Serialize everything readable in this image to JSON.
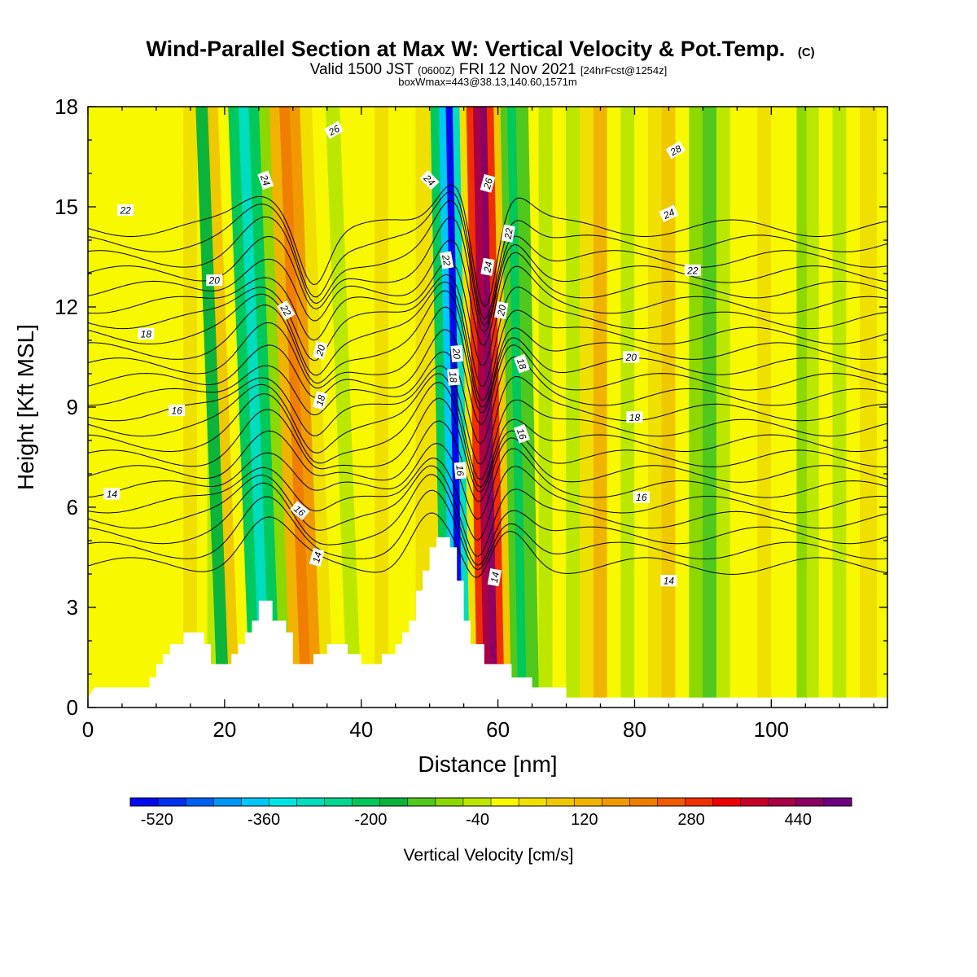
{
  "chart_data": {
    "type": "heatmap",
    "title": "Wind-Parallel Section at Max W: Vertical Velocity & Pot.Temp.",
    "title_mark": "(C)",
    "subtitle": {
      "pre": "Valid 1500 JST ",
      "zulu": "(0600Z)",
      "mid": " FRI 12 Nov 2021 ",
      "fcst": "[24hrFcst@1254z]"
    },
    "subtitle2": "boxWmax=443@38.13,140.60,1571m",
    "xlabel": "Distance [nm]",
    "ylabel": "Height [Kft MSL]",
    "xlim": [
      0,
      117
    ],
    "ylim": [
      0,
      18
    ],
    "xticks": [
      0,
      20,
      40,
      60,
      80,
      100
    ],
    "yticks": [
      0,
      3,
      6,
      9,
      12,
      15,
      18
    ],
    "colorbar": {
      "label": "Vertical Velocity [cm/s]",
      "ticks": [
        -520,
        -360,
        -200,
        -40,
        120,
        280,
        440
      ],
      "min": -560,
      "max": 520,
      "colors": [
        "#0008ee",
        "#0030f0",
        "#0060f4",
        "#0096f6",
        "#00c8f8",
        "#00e6e6",
        "#00dcbe",
        "#00d890",
        "#00c85a",
        "#0cb43c",
        "#50c81e",
        "#8cd800",
        "#bce800",
        "#f8f800",
        "#f0e000",
        "#f0c800",
        "#f0b400",
        "#f09a00",
        "#f07e00",
        "#f05a00",
        "#f02e00",
        "#ee0000",
        "#c80028",
        "#aa0046",
        "#8c0064",
        "#6e0082"
      ]
    },
    "columns": [
      {
        "x": 0,
        "w": -10
      },
      {
        "x": 4,
        "w": -20
      },
      {
        "x": 8,
        "w": -10
      },
      {
        "x": 11,
        "w": 10
      },
      {
        "x": 13,
        "w": 10
      },
      {
        "x": 15,
        "w": 60
      },
      {
        "x": 17,
        "w": 20
      },
      {
        "x": 18,
        "w": -60
      },
      {
        "x": 20,
        "w": -160
      },
      {
        "x": 21.5,
        "w": 80
      },
      {
        "x": 23,
        "w": 20
      },
      {
        "x": 24.5,
        "w": -200
      },
      {
        "x": 26,
        "w": -310
      },
      {
        "x": 27.5,
        "w": -200
      },
      {
        "x": 29,
        "w": -80
      },
      {
        "x": 30.5,
        "w": 120
      },
      {
        "x": 32,
        "w": 200
      },
      {
        "x": 33.5,
        "w": 150
      },
      {
        "x": 35,
        "w": 60
      },
      {
        "x": 37,
        "w": -20
      },
      {
        "x": 39,
        "w": -40
      },
      {
        "x": 41,
        "w": 10
      },
      {
        "x": 43,
        "w": 40
      },
      {
        "x": 45,
        "w": 10
      },
      {
        "x": 47,
        "w": -20
      },
      {
        "x": 49,
        "w": 60
      },
      {
        "x": 51,
        "w": 40
      },
      {
        "x": 52.5,
        "w": -200
      },
      {
        "x": 53.5,
        "w": -360
      },
      {
        "x": 54.5,
        "w": -520
      },
      {
        "x": 55.5,
        "w": -300
      },
      {
        "x": 56.5,
        "w": 40
      },
      {
        "x": 57.5,
        "w": 280
      },
      {
        "x": 58.5,
        "w": 400
      },
      {
        "x": 59.5,
        "w": 443
      },
      {
        "x": 60.5,
        "w": 280
      },
      {
        "x": 61.5,
        "w": 80
      },
      {
        "x": 62.5,
        "w": -120
      },
      {
        "x": 63.5,
        "w": -200
      },
      {
        "x": 65,
        "w": -140
      },
      {
        "x": 67,
        "w": -60
      },
      {
        "x": 69,
        "w": 20
      },
      {
        "x": 71,
        "w": -40
      },
      {
        "x": 73,
        "w": 40
      },
      {
        "x": 75,
        "w": 120
      },
      {
        "x": 77,
        "w": 20
      },
      {
        "x": 79,
        "w": -60
      },
      {
        "x": 81,
        "w": -20
      },
      {
        "x": 83,
        "w": 40
      },
      {
        "x": 85,
        "w": 100
      },
      {
        "x": 87,
        "w": 20
      },
      {
        "x": 89,
        "w": -80
      },
      {
        "x": 91,
        "w": -120
      },
      {
        "x": 93,
        "w": -40
      },
      {
        "x": 95,
        "w": 20
      },
      {
        "x": 97,
        "w": -20
      },
      {
        "x": 99,
        "w": 40
      },
      {
        "x": 101,
        "w": -20
      },
      {
        "x": 103,
        "w": 20
      },
      {
        "x": 104.5,
        "w": -100
      },
      {
        "x": 106,
        "w": -60
      },
      {
        "x": 108,
        "w": 20
      },
      {
        "x": 110,
        "w": -40
      },
      {
        "x": 112,
        "w": 10
      },
      {
        "x": 114,
        "w": 40
      },
      {
        "x": 117,
        "w": 10
      }
    ],
    "terrain": [
      [
        0,
        0.3
      ],
      [
        1,
        0.6
      ],
      [
        9,
        0.6
      ],
      [
        9,
        0.9
      ],
      [
        10,
        0.9
      ],
      [
        10,
        1.3
      ],
      [
        11,
        1.3
      ],
      [
        11,
        1.6
      ],
      [
        12,
        1.6
      ],
      [
        12,
        1.9
      ],
      [
        14,
        1.9
      ],
      [
        14,
        2.25
      ],
      [
        17,
        2.25
      ],
      [
        17,
        1.9
      ],
      [
        18,
        1.9
      ],
      [
        18,
        1.3
      ],
      [
        21,
        1.3
      ],
      [
        21,
        1.6
      ],
      [
        22,
        1.6
      ],
      [
        22,
        1.9
      ],
      [
        23,
        1.9
      ],
      [
        23,
        2.25
      ],
      [
        24,
        2.25
      ],
      [
        24,
        2.6
      ],
      [
        25,
        2.6
      ],
      [
        25,
        3.2
      ],
      [
        27,
        3.2
      ],
      [
        27,
        2.6
      ],
      [
        29,
        2.6
      ],
      [
        29,
        2.25
      ],
      [
        30,
        2.25
      ],
      [
        30,
        1.3
      ],
      [
        33,
        1.3
      ],
      [
        33,
        1.6
      ],
      [
        35,
        1.6
      ],
      [
        35,
        1.9
      ],
      [
        38,
        1.9
      ],
      [
        38,
        1.6
      ],
      [
        40,
        1.6
      ],
      [
        40,
        1.3
      ],
      [
        43,
        1.3
      ],
      [
        43,
        1.6
      ],
      [
        45,
        1.6
      ],
      [
        45,
        1.9
      ],
      [
        46,
        1.9
      ],
      [
        46,
        2.25
      ],
      [
        47,
        2.25
      ],
      [
        47,
        2.6
      ],
      [
        48,
        2.6
      ],
      [
        48,
        3.5
      ],
      [
        49,
        3.5
      ],
      [
        49,
        4.1
      ],
      [
        50,
        4.1
      ],
      [
        50,
        4.8
      ],
      [
        51,
        4.8
      ],
      [
        51,
        5.1
      ],
      [
        53,
        5.1
      ],
      [
        53,
        4.8
      ],
      [
        54,
        4.8
      ],
      [
        54,
        3.8
      ],
      [
        55,
        3.8
      ],
      [
        55,
        2.6
      ],
      [
        56,
        2.6
      ],
      [
        56,
        1.9
      ],
      [
        58,
        1.9
      ],
      [
        58,
        1.3
      ],
      [
        62,
        1.3
      ],
      [
        62,
        0.9
      ],
      [
        65,
        0.9
      ],
      [
        65,
        0.6
      ],
      [
        70,
        0.6
      ],
      [
        70,
        0.3
      ],
      [
        117,
        0.3
      ]
    ],
    "theta_isentropes_baseline": [
      9,
      10,
      11,
      12,
      13,
      14,
      15,
      16,
      17,
      18,
      19,
      20,
      21,
      22,
      23,
      24,
      25,
      26,
      27,
      28,
      29,
      30,
      31
    ]
  },
  "isentrope_labels": [
    {
      "text": "22",
      "x": 5.5,
      "y": 14.9,
      "rot": 0
    },
    {
      "text": "20",
      "x": 18.5,
      "y": 12.8,
      "rot": 0
    },
    {
      "text": "18",
      "x": 8.5,
      "y": 11.2,
      "rot": 0
    },
    {
      "text": "16",
      "x": 13,
      "y": 8.9,
      "rot": 0
    },
    {
      "text": "14",
      "x": 3.5,
      "y": 6.4,
      "rot": 0
    },
    {
      "text": "26",
      "x": 36,
      "y": 17.3,
      "rot": -30
    },
    {
      "text": "24",
      "x": 26,
      "y": 15.8,
      "rot": 70
    },
    {
      "text": "22",
      "x": 29,
      "y": 11.9,
      "rot": 60
    },
    {
      "text": "20",
      "x": 34,
      "y": 10.7,
      "rot": -75
    },
    {
      "text": "18",
      "x": 34,
      "y": 9.2,
      "rot": -75
    },
    {
      "text": "16",
      "x": 31,
      "y": 5.9,
      "rot": 40
    },
    {
      "text": "14",
      "x": 33.5,
      "y": 4.5,
      "rot": -75
    },
    {
      "text": "24",
      "x": 50,
      "y": 15.8,
      "rot": 45
    },
    {
      "text": "26",
      "x": 58.5,
      "y": 15.7,
      "rot": -75
    },
    {
      "text": "22",
      "x": 52.5,
      "y": 13.4,
      "rot": 80
    },
    {
      "text": "22",
      "x": 61.5,
      "y": 14.2,
      "rot": -80
    },
    {
      "text": "24",
      "x": 58.5,
      "y": 13.2,
      "rot": -80
    },
    {
      "text": "20",
      "x": 60.5,
      "y": 11.9,
      "rot": -80
    },
    {
      "text": "20",
      "x": 54,
      "y": 10.6,
      "rot": 85
    },
    {
      "text": "18",
      "x": 53.5,
      "y": 9.9,
      "rot": 85
    },
    {
      "text": "18",
      "x": 63.5,
      "y": 10.3,
      "rot": 70
    },
    {
      "text": "16",
      "x": 63.5,
      "y": 8.2,
      "rot": 70
    },
    {
      "text": "16",
      "x": 54.5,
      "y": 7.1,
      "rot": 85
    },
    {
      "text": "14",
      "x": 59.5,
      "y": 3.9,
      "rot": -80
    },
    {
      "text": "28",
      "x": 86,
      "y": 16.7,
      "rot": -30
    },
    {
      "text": "24",
      "x": 85,
      "y": 14.8,
      "rot": -25
    },
    {
      "text": "22",
      "x": 88.5,
      "y": 13.1,
      "rot": 0
    },
    {
      "text": "20",
      "x": 79.5,
      "y": 10.5,
      "rot": 0
    },
    {
      "text": "18",
      "x": 80,
      "y": 8.7,
      "rot": 0
    },
    {
      "text": "16",
      "x": 81,
      "y": 6.3,
      "rot": 0
    },
    {
      "text": "14",
      "x": 85,
      "y": 3.8,
      "rot": 0
    }
  ]
}
